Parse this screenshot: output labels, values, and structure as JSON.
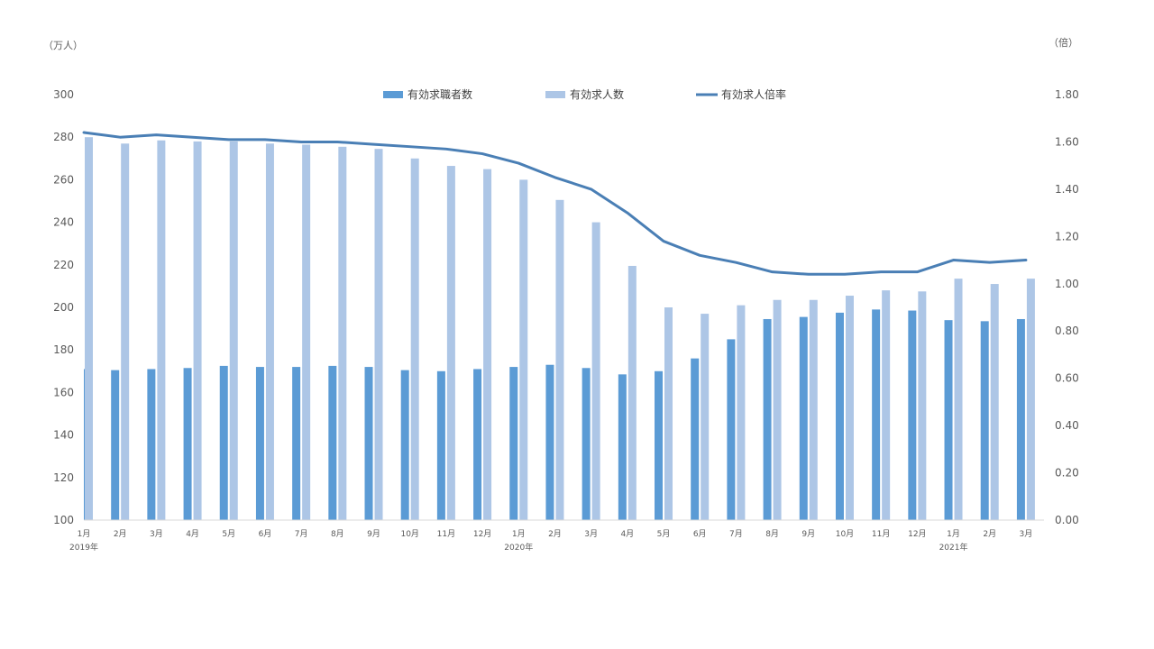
{
  "chart_data": {
    "type": "bar",
    "left_unit": "（万人）",
    "right_unit": "（倍）",
    "left_ylim": [
      100,
      300
    ],
    "left_ticks": [
      "300",
      "280",
      "260",
      "240",
      "220",
      "200",
      "180",
      "160",
      "140",
      "120",
      "100"
    ],
    "right_ylim": [
      0,
      1.8
    ],
    "right_ticks": [
      "1.80",
      "1.60",
      "1.40",
      "1.20",
      "1.00",
      "0.80",
      "0.60",
      "0.40",
      "0.20",
      "0.00"
    ],
    "categories": [
      "1月",
      "2月",
      "3月",
      "4月",
      "5月",
      "6月",
      "7月",
      "8月",
      "9月",
      "10月",
      "11月",
      "12月",
      "1月",
      "2月",
      "3月",
      "4月",
      "5月",
      "6月",
      "7月",
      "8月",
      "9月",
      "10月",
      "11月",
      "12月",
      "1月",
      "2月",
      "3月"
    ],
    "year_labels": [
      {
        "index": 0,
        "label": "2019年"
      },
      {
        "index": 12,
        "label": "2020年"
      },
      {
        "index": 24,
        "label": "2021年"
      }
    ],
    "series": [
      {
        "name": "有効求職者数",
        "kind": "bar",
        "axis": "left",
        "color": "#5b9bd5",
        "values": [
          171,
          170.5,
          171,
          171.5,
          172.5,
          172,
          172,
          172.5,
          172,
          170.5,
          170,
          171,
          172,
          173,
          171.5,
          168.5,
          170,
          176,
          185,
          194.5,
          195.5,
          197.5,
          199,
          198.5,
          194,
          193.5,
          194.5
        ]
      },
      {
        "name": "有効求人数",
        "kind": "bar",
        "axis": "left",
        "color": "#adc6e6",
        "values": [
          280,
          277,
          278.5,
          278,
          278,
          277,
          276.5,
          275.5,
          274.5,
          270,
          266.5,
          265,
          260,
          250.5,
          240,
          219.5,
          200,
          197,
          201,
          203.5,
          203.5,
          205.5,
          208,
          207.5,
          213.5,
          211,
          213.5
        ]
      },
      {
        "name": "有効求人倍率",
        "kind": "line",
        "axis": "right",
        "color": "#4a7fb5",
        "values": [
          1.64,
          1.62,
          1.63,
          1.62,
          1.61,
          1.61,
          1.6,
          1.6,
          1.59,
          1.58,
          1.57,
          1.55,
          1.51,
          1.45,
          1.4,
          1.3,
          1.18,
          1.12,
          1.09,
          1.05,
          1.04,
          1.04,
          1.05,
          1.05,
          1.1,
          1.09,
          1.1
        ]
      }
    ]
  }
}
